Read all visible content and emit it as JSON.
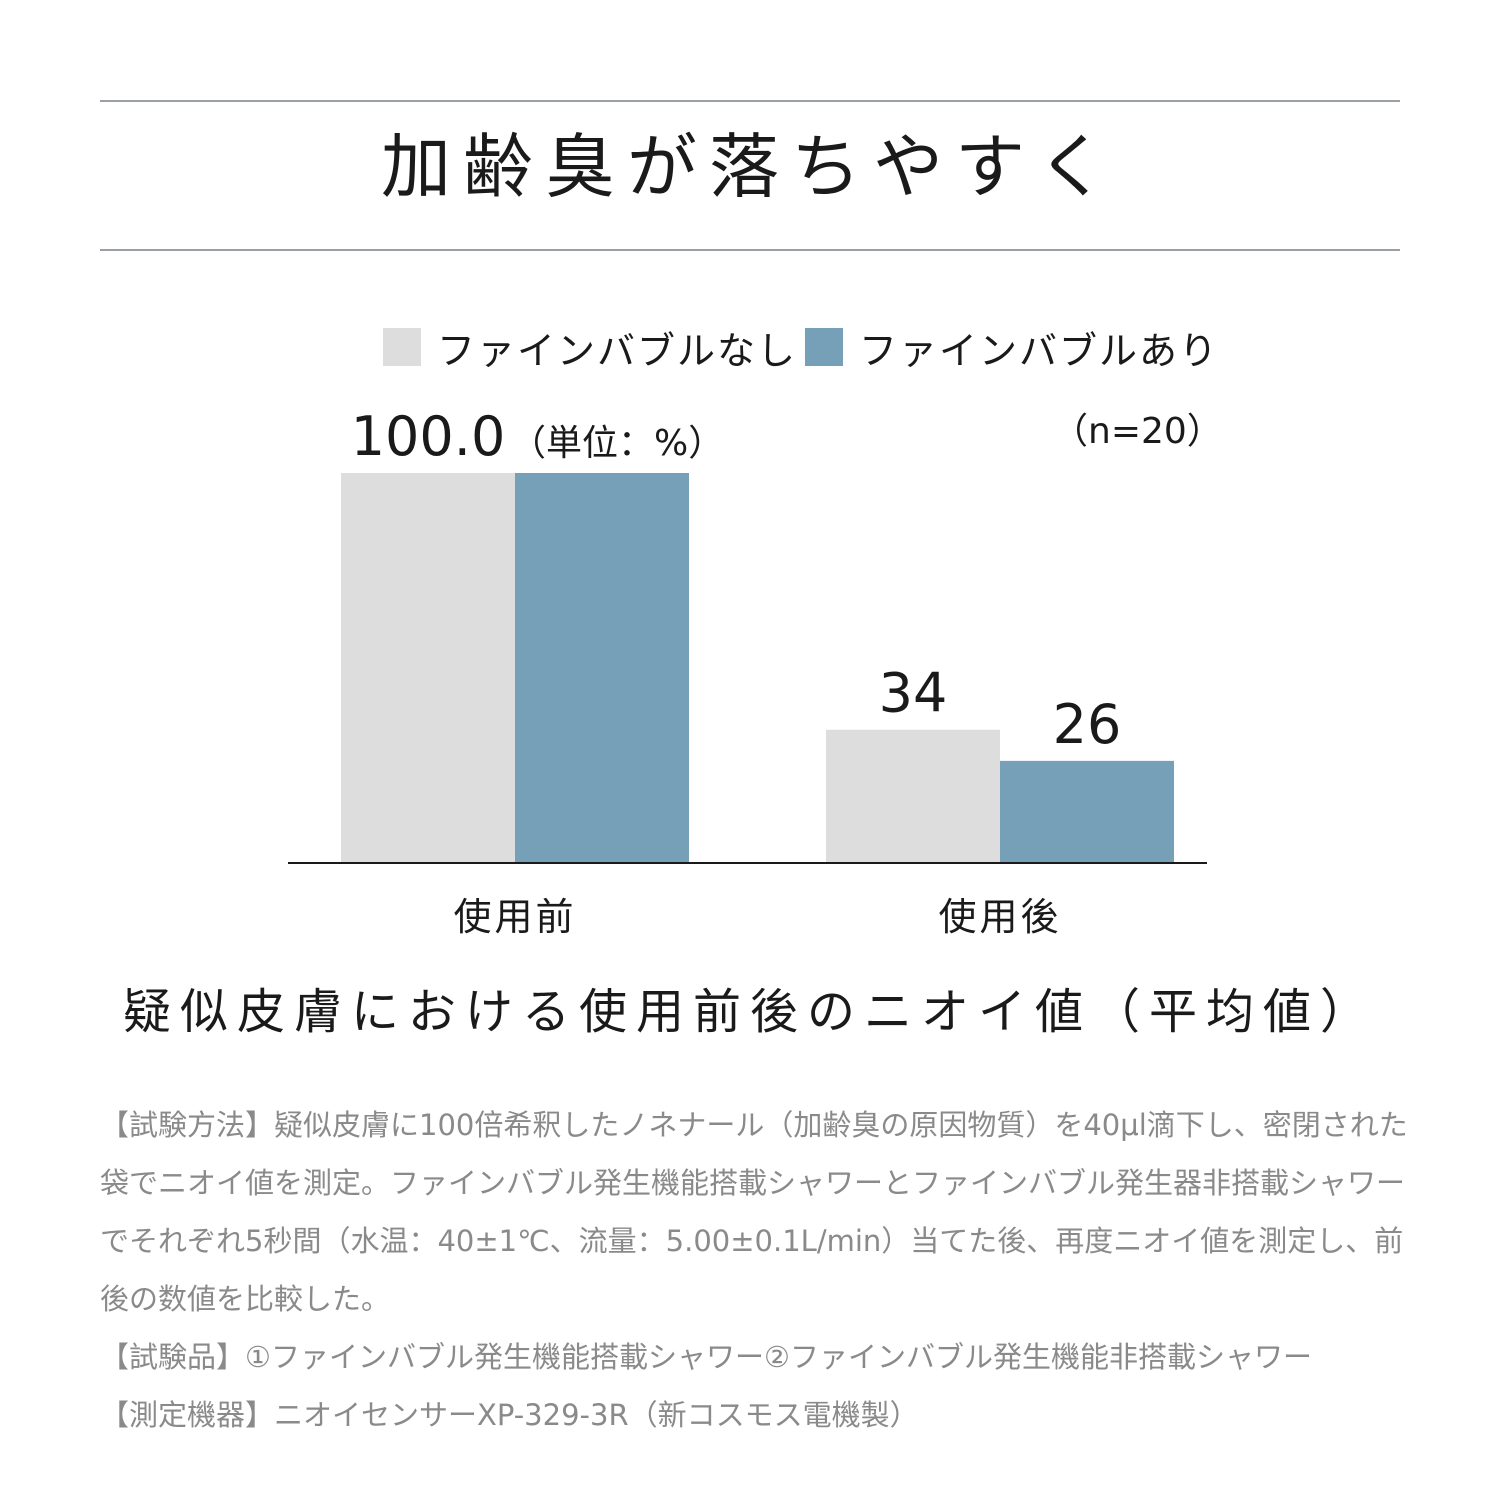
{
  "title": "加齢臭が落ちやすく",
  "unit_note": "（単位：%）",
  "n_note": "（n=20）",
  "caption": "疑似皮膚における使用前後のニオイ値（平均値）",
  "colors": {
    "without": "#dddddd",
    "with": "#75a0b8",
    "rule": "#9aa0a6"
  },
  "chart_data": {
    "type": "bar",
    "categories": [
      "使用前",
      "使用後"
    ],
    "series": [
      {
        "name": "ファインバブルなし",
        "values": [
          100,
          34
        ],
        "labels": [
          "100.0",
          "34"
        ]
      },
      {
        "name": "ファインバブルあり",
        "values": [
          100,
          26
        ],
        "labels": [
          "",
          "26"
        ]
      }
    ],
    "ylim": [
      0,
      100
    ],
    "grid": false,
    "legend": "top-center"
  },
  "notes": {
    "method": "【試験方法】疑似皮膚に100倍希釈したノネナール（加齢臭の原因物質）を40μl滴下し、密閉された袋でニオイ値を測定。ファインバブル発生機能搭載シャワーとファインバブル発生器非搭載シャワーでそれぞれ5秒間（水温：40±1℃、流量：5.00±0.1L/min）当てた後、再度ニオイ値を測定し、前後の数値を比較した。",
    "samples": "【試験品】①ファインバブル発生機能搭載シャワー②ファインバブル発生機能非搭載シャワー",
    "device": "【測定機器】ニオイセンサーXP-329-3R（新コスモス電機製）"
  }
}
